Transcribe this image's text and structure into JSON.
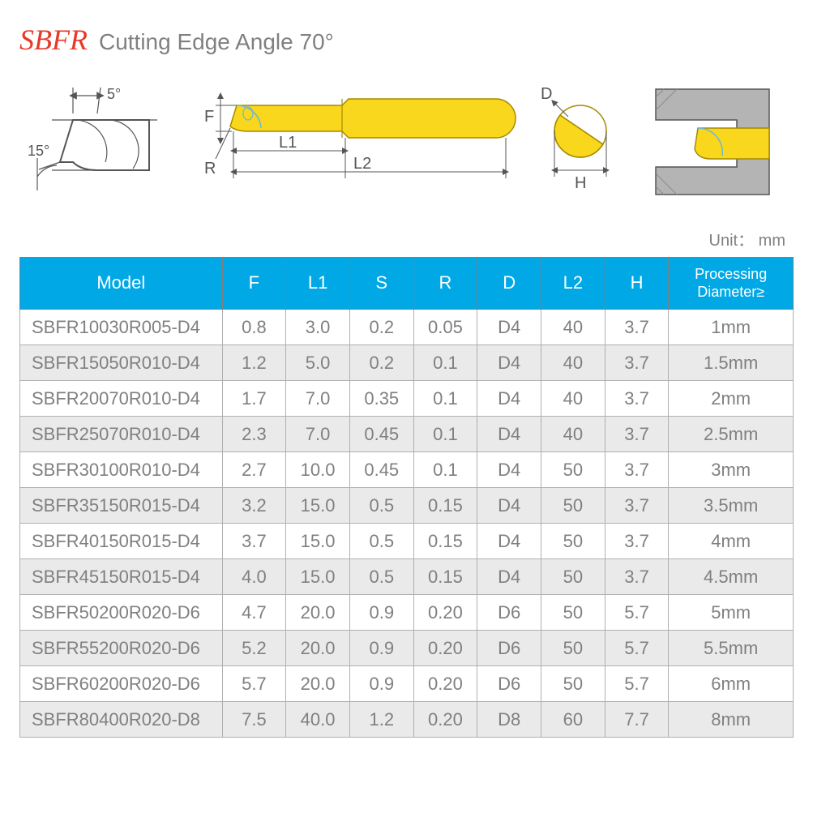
{
  "header": {
    "code": "SBFR",
    "description": "Cutting Edge Angle  70°"
  },
  "diagrams": {
    "tip": {
      "angle_top": "5°",
      "angle_side": "15°"
    },
    "profile": {
      "F": "F",
      "R": "R",
      "L1": "L1",
      "L2": "L2"
    },
    "cross": {
      "D": "D",
      "H": "H"
    }
  },
  "unit_label": "Unit： mm",
  "table": {
    "columns": [
      "Model",
      "F",
      "L1",
      "S",
      "R",
      "D",
      "L2",
      "H",
      "Processing Diameter≥"
    ],
    "rows": [
      [
        "SBFR10030R005-D4",
        "0.8",
        "3.0",
        "0.2",
        "0.05",
        "D4",
        "40",
        "3.7",
        "1mm"
      ],
      [
        "SBFR15050R010-D4",
        "1.2",
        "5.0",
        "0.2",
        "0.1",
        "D4",
        "40",
        "3.7",
        "1.5mm"
      ],
      [
        "SBFR20070R010-D4",
        "1.7",
        "7.0",
        "0.35",
        "0.1",
        "D4",
        "40",
        "3.7",
        "2mm"
      ],
      [
        "SBFR25070R010-D4",
        "2.3",
        "7.0",
        "0.45",
        "0.1",
        "D4",
        "40",
        "3.7",
        "2.5mm"
      ],
      [
        "SBFR30100R010-D4",
        "2.7",
        "10.0",
        "0.45",
        "0.1",
        "D4",
        "50",
        "3.7",
        "3mm"
      ],
      [
        "SBFR35150R015-D4",
        "3.2",
        "15.0",
        "0.5",
        "0.15",
        "D4",
        "50",
        "3.7",
        "3.5mm"
      ],
      [
        "SBFR40150R015-D4",
        "3.7",
        "15.0",
        "0.5",
        "0.15",
        "D4",
        "50",
        "3.7",
        "4mm"
      ],
      [
        "SBFR45150R015-D4",
        "4.0",
        "15.0",
        "0.5",
        "0.15",
        "D4",
        "50",
        "3.7",
        "4.5mm"
      ],
      [
        "SBFR50200R020-D6",
        "4.7",
        "20.0",
        "0.9",
        "0.20",
        "D6",
        "50",
        "5.7",
        "5mm"
      ],
      [
        "SBFR55200R020-D6",
        "5.2",
        "20.0",
        "0.9",
        "0.20",
        "D6",
        "50",
        "5.7",
        "5.5mm"
      ],
      [
        "SBFR60200R020-D6",
        "5.7",
        "20.0",
        "0.9",
        "0.20",
        "D6",
        "50",
        "5.7",
        "6mm"
      ],
      [
        "SBFR80400R020-D8",
        "7.5",
        "40.0",
        "1.2",
        "0.20",
        "D8",
        "60",
        "7.7",
        "8mm"
      ]
    ]
  },
  "style": {
    "header_bg": "#00a8e6",
    "header_fg": "#ffffff",
    "row_alt_bg": "#eaeaea",
    "border_color": "#808080",
    "text_color": "#808080",
    "accent_color": "#e73828",
    "tool_fill": "#f9d71c",
    "tool_stroke": "#a68a00",
    "holder_fill": "#b0b0b0"
  }
}
